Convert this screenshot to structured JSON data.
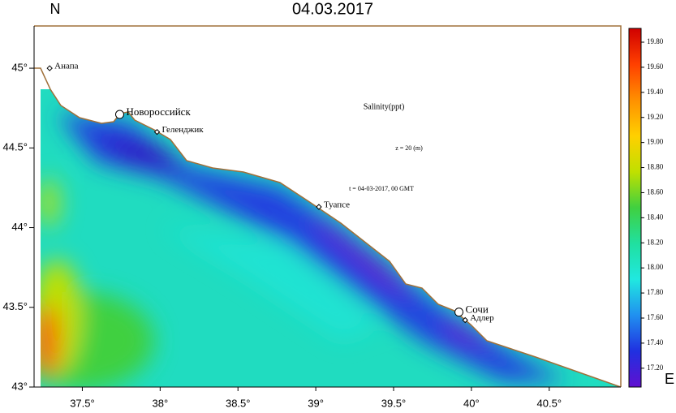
{
  "chart_data": {
    "type": "heatmap",
    "title": "04.03.2017",
    "y_axis_label": "N",
    "x_axis_label": "E",
    "annotations": [
      "Salinity(ppt)",
      "z = 20 (m)",
      "t = 04-03-2017, 00 GMT"
    ],
    "xlim": [
      37.19,
      40.96
    ],
    "ylim": [
      43,
      45.265
    ],
    "xticks": [
      {
        "value": 37.5,
        "label": "37.5°"
      },
      {
        "value": 38,
        "label": "38°"
      },
      {
        "value": 38.5,
        "label": "38.5°"
      },
      {
        "value": 39,
        "label": "39°"
      },
      {
        "value": 39.5,
        "label": "39.5°"
      },
      {
        "value": 40,
        "label": "40°"
      },
      {
        "value": 40.5,
        "label": "40.5°"
      }
    ],
    "yticks": [
      {
        "value": 43,
        "label": "43°"
      },
      {
        "value": 43.5,
        "label": "43.5°"
      },
      {
        "value": 44,
        "label": "44°"
      },
      {
        "value": 44.5,
        "label": "44.5°"
      },
      {
        "value": 45,
        "label": "45°"
      }
    ],
    "colorbar": {
      "lim": [
        17.05,
        19.91
      ],
      "ticks": [
        {
          "value": 17.2,
          "label": "17.20"
        },
        {
          "value": 17.4,
          "label": "17.40"
        },
        {
          "value": 17.6,
          "label": "17.60"
        },
        {
          "value": 17.8,
          "label": "17.80"
        },
        {
          "value": 18,
          "label": "18.00"
        },
        {
          "value": 18.2,
          "label": "18.20"
        },
        {
          "value": 18.4,
          "label": "18.40"
        },
        {
          "value": 18.6,
          "label": "18.60"
        },
        {
          "value": 18.8,
          "label": "18.80"
        },
        {
          "value": 19,
          "label": "19.00"
        },
        {
          "value": 19.2,
          "label": "19.20"
        },
        {
          "value": 19.4,
          "label": "19.40"
        },
        {
          "value": 19.6,
          "label": "19.60"
        },
        {
          "value": 19.8,
          "label": "19.80"
        }
      ],
      "colors": [
        "#d00000",
        "#ff4000",
        "#ff9000",
        "#ffd000",
        "#c0e000",
        "#40d040",
        "#20e0a0",
        "#20e8e0",
        "#2090f0",
        "#2030e0",
        "#6010d0"
      ]
    },
    "places": [
      {
        "name": "Анапа",
        "lon": 37.29,
        "lat": 45.0,
        "marker": "diamond"
      },
      {
        "name": "Новороссийск",
        "lon": 37.74,
        "lat": 44.71,
        "marker": "circle"
      },
      {
        "name": "Геленджик",
        "lon": 37.98,
        "lat": 44.6,
        "marker": "diamond"
      },
      {
        "name": "Туапсе",
        "lon": 39.02,
        "lat": 44.13,
        "marker": "diamond"
      },
      {
        "name": "Сочи",
        "lon": 39.92,
        "lat": 43.47,
        "marker": "circle"
      },
      {
        "name": "Адлер",
        "lon": 39.96,
        "lat": 43.42,
        "marker": "diamond"
      }
    ]
  }
}
